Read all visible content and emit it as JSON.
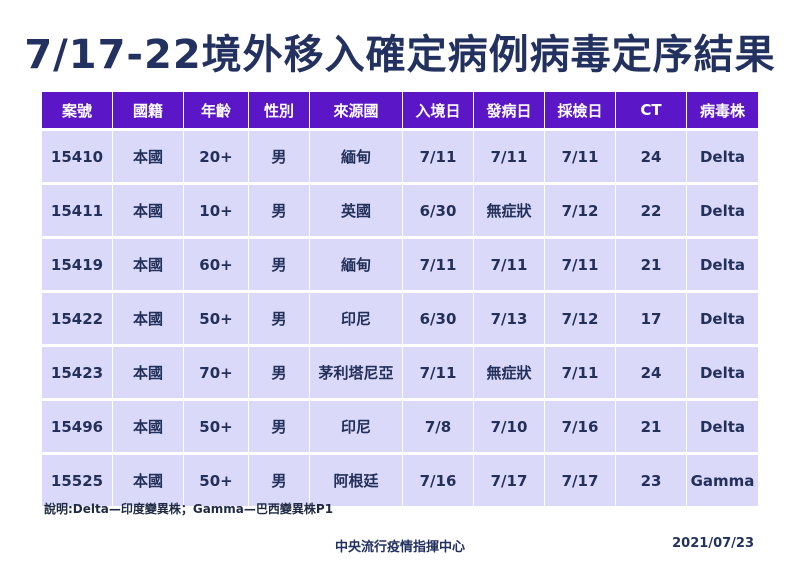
{
  "title": "7/17-22境外移入確定病例病毒定序結果",
  "table": {
    "headers": [
      "案號",
      "國籍",
      "年齡",
      "性別",
      "來源國",
      "入境日",
      "發病日",
      "採檢日",
      "CT",
      "病毒株"
    ],
    "rows": [
      [
        "15410",
        "本國",
        "20+",
        "男",
        "緬甸",
        "7/11",
        "7/11",
        "7/11",
        "24",
        "Delta"
      ],
      [
        "15411",
        "本國",
        "10+",
        "男",
        "英國",
        "6/30",
        "無症狀",
        "7/12",
        "22",
        "Delta"
      ],
      [
        "15419",
        "本國",
        "60+",
        "男",
        "緬甸",
        "7/11",
        "7/11",
        "7/11",
        "21",
        "Delta"
      ],
      [
        "15422",
        "本國",
        "50+",
        "男",
        "印尼",
        "6/30",
        "7/13",
        "7/12",
        "17",
        "Delta"
      ],
      [
        "15423",
        "本國",
        "70+",
        "男",
        "茅利塔尼亞",
        "7/11",
        "無症狀",
        "7/11",
        "24",
        "Delta"
      ],
      [
        "15496",
        "本國",
        "50+",
        "男",
        "印尼",
        "7/8",
        "7/10",
        "7/16",
        "21",
        "Delta"
      ],
      [
        "15525",
        "本國",
        "50+",
        "男",
        "阿根廷",
        "7/16",
        "7/17",
        "7/17",
        "23",
        "Gamma"
      ]
    ]
  },
  "note": "說明:Delta—印度變異株；Gamma—巴西變異株P1",
  "footer": {
    "org": "中央流行疫情指揮中心",
    "date": "2021/07/23"
  },
  "colors": {
    "header_bg": "#5b16c8",
    "row_bg": "#dbd9fa",
    "title": "#22315f"
  }
}
